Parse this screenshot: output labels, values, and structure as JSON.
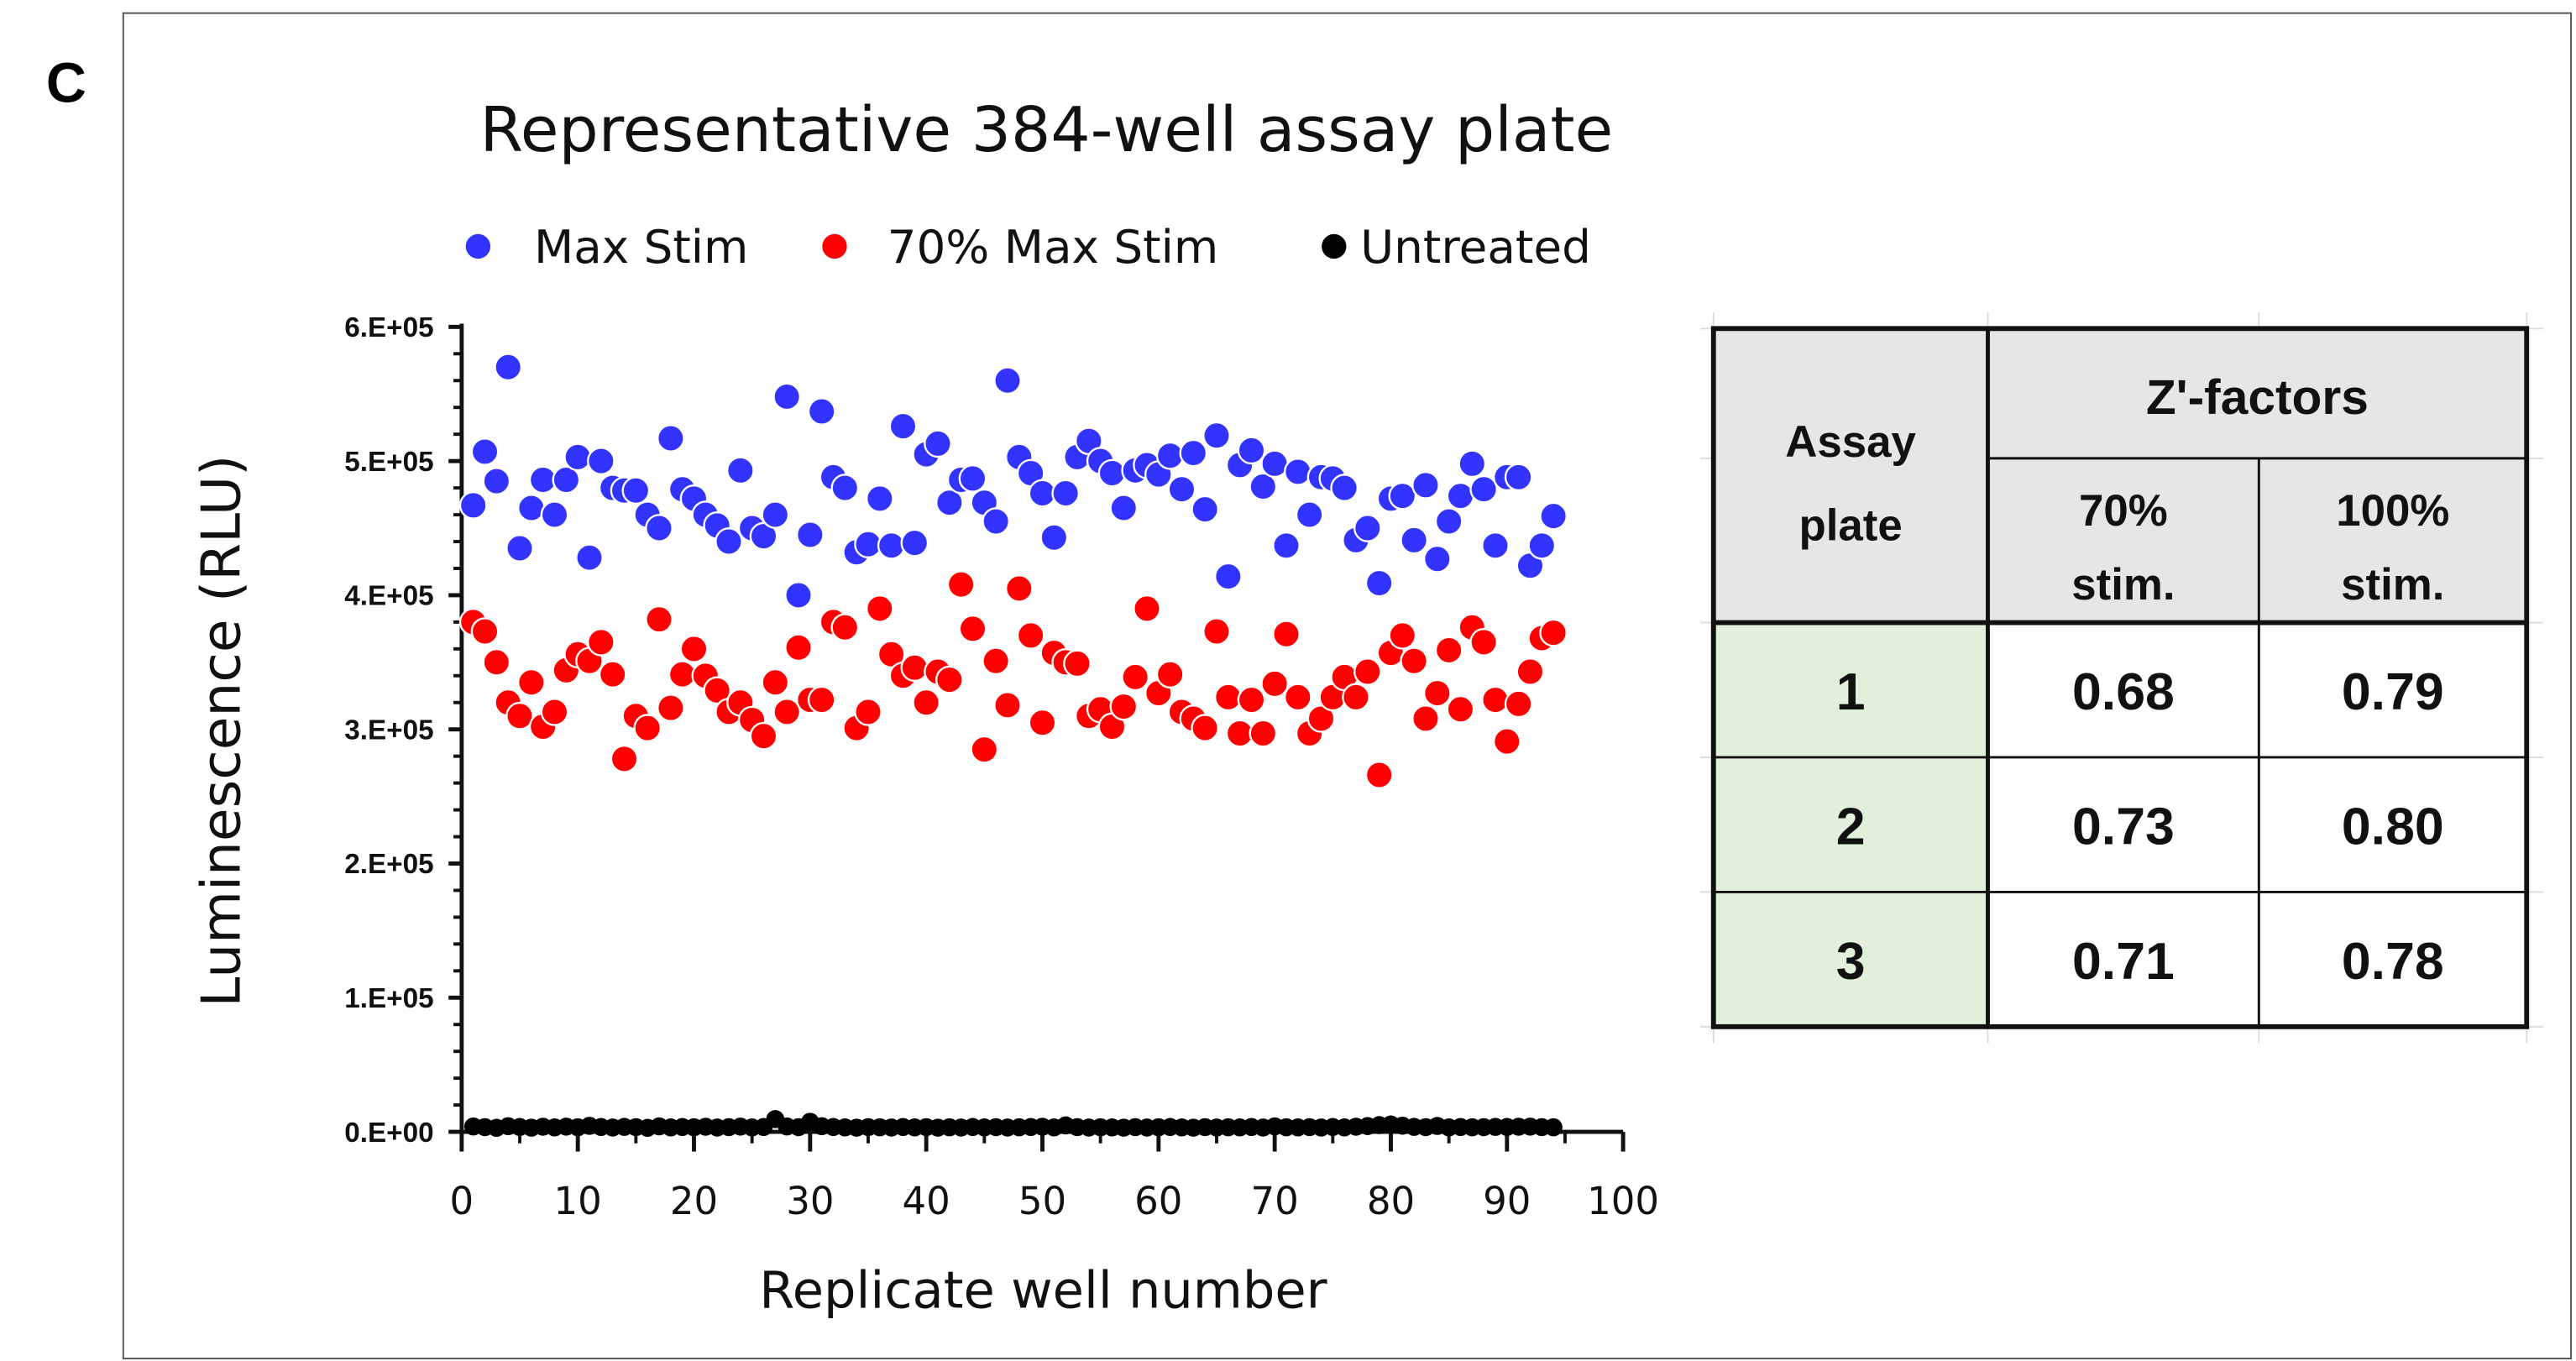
{
  "panel_label": "C",
  "chart_data": {
    "type": "scatter",
    "title": "Representative 384-well assay plate",
    "xlabel": "Replicate well number",
    "ylabel": "Luminescence (RLU)",
    "xlim": [
      0,
      100
    ],
    "ylim": [
      0,
      600000
    ],
    "x_ticks": [
      "0",
      "10",
      "20",
      "30",
      "40",
      "50",
      "60",
      "70",
      "80",
      "90",
      "100"
    ],
    "y_ticks": [
      "0.E+00",
      "1.E+05",
      "2.E+05",
      "3.E+05",
      "4.E+05",
      "5.E+05",
      "6.E+05"
    ],
    "grid": false,
    "legend_position": "top",
    "series": [
      {
        "name": "Max Stim",
        "color": "#3333ff",
        "values": [
          467000,
          507000,
          485000,
          570000,
          435000,
          465000,
          486000,
          460000,
          486000,
          503000,
          428000,
          500000,
          480000,
          478000,
          478000,
          460000,
          450000,
          517000,
          479000,
          472000,
          460000,
          452000,
          440000,
          493000,
          450000,
          444000,
          460000,
          548000,
          400000,
          445000,
          537000,
          488000,
          480000,
          432000,
          438000,
          472000,
          437000,
          526000,
          439000,
          505000,
          513000,
          469000,
          486000,
          487000,
          469000,
          455000,
          560000,
          503000,
          491000,
          476000,
          443000,
          476000,
          503000,
          515000,
          500000,
          491000,
          465000,
          493000,
          497000,
          490000,
          504000,
          479000,
          506000,
          464000,
          519000,
          414000,
          497000,
          508000,
          481000,
          498000,
          437000,
          492000,
          460000,
          488000,
          487000,
          480000,
          441000,
          450000,
          409000,
          472000,
          474000,
          441000,
          482000,
          427000,
          455000,
          474000,
          498000,
          479000,
          437000,
          488000,
          488000,
          422000,
          437000,
          459000
        ]
      },
      {
        "name": "70% Max Stim",
        "color": "#ff0000",
        "values": [
          380000,
          373000,
          350000,
          320000,
          310000,
          335000,
          302000,
          313000,
          344000,
          356000,
          351000,
          365000,
          341000,
          278000,
          310000,
          301000,
          382000,
          316000,
          341000,
          360000,
          340000,
          329000,
          313000,
          320000,
          307000,
          295000,
          335000,
          313000,
          361000,
          322000,
          322000,
          380000,
          376000,
          301000,
          313000,
          390000,
          356000,
          340000,
          346000,
          320000,
          343000,
          337000,
          408000,
          375000,
          285000,
          351000,
          318000,
          405000,
          370000,
          305000,
          357000,
          350000,
          349000,
          310000,
          315000,
          302000,
          317000,
          339000,
          390000,
          327000,
          341000,
          313000,
          308000,
          301000,
          373000,
          324000,
          297000,
          322000,
          297000,
          334000,
          371000,
          324000,
          297000,
          308000,
          324000,
          339000,
          324000,
          343000,
          266000,
          357000,
          370000,
          351000,
          308000,
          327000,
          359000,
          315000,
          376000,
          365000,
          322000,
          291000,
          319000,
          343000,
          368000,
          372000
        ]
      },
      {
        "name": "Untreated",
        "color": "#000000",
        "values": [
          4000,
          3500,
          3000,
          4200,
          3600,
          3100,
          3800,
          3300,
          3900,
          3400,
          4500,
          3600,
          3200,
          3700,
          3500,
          3000,
          4100,
          3300,
          3600,
          3400,
          3800,
          3200,
          3500,
          3900,
          3300,
          3600,
          9500,
          4000,
          3500,
          7500,
          4200,
          3600,
          3300,
          3100,
          3500,
          3400,
          3200,
          3600,
          3300,
          3500,
          3100,
          3400,
          3200,
          3600,
          3300,
          3500,
          3200,
          3400,
          3600,
          3800,
          3300,
          4800,
          3500,
          3200,
          3400,
          3300,
          3100,
          3500,
          3200,
          3400,
          3600,
          3300,
          3100,
          3500,
          3200,
          3400,
          3300,
          3600,
          3200,
          4100,
          3400,
          3300,
          3500,
          3200,
          3600,
          3300,
          3800,
          4300,
          5000,
          5500,
          4600,
          3700,
          3500,
          4400,
          3300,
          3600,
          3400,
          3500,
          3700,
          3600,
          3800,
          3900,
          3500,
          3400
        ]
      }
    ]
  },
  "table": {
    "header_col1": [
      "Assay",
      "plate"
    ],
    "header_group": "Z'-factors",
    "sub_headers": [
      [
        "70%",
        "stim."
      ],
      [
        "100%",
        "stim."
      ]
    ],
    "header_fill": "#e7e6e6",
    "first_col_fill": "#e2efda",
    "rows": [
      {
        "plate": "1",
        "z70": "0.68",
        "z100": "0.79"
      },
      {
        "plate": "2",
        "z70": "0.73",
        "z100": "0.80"
      },
      {
        "plate": "3",
        "z70": "0.71",
        "z100": "0.78"
      }
    ]
  }
}
